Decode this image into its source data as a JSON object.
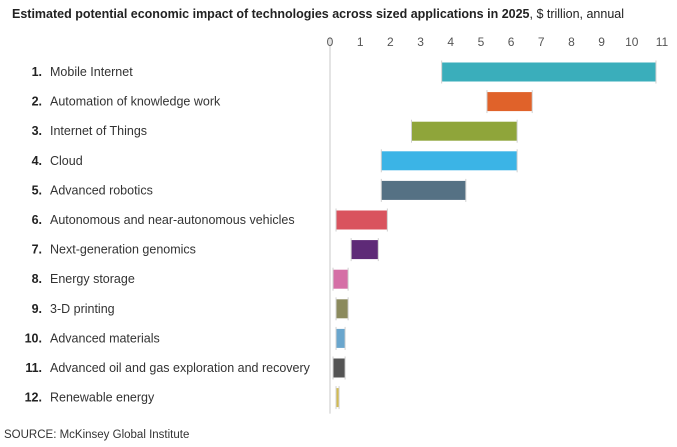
{
  "title": "Estimated potential economic impact of technologies across sized applications in 2025",
  "subtitle": ", $ trillion, annual",
  "source": "SOURCE: McKinsey Global Institute",
  "chart_data": {
    "type": "bar",
    "orientation": "horizontal-floating-range",
    "title": "Estimated potential economic impact of technologies across sized applications in 2025",
    "unit": "$ trillion, annual",
    "xlim": [
      0,
      11
    ],
    "ticks": [
      "0",
      "1",
      "2",
      "3",
      "4",
      "5",
      "6",
      "7",
      "8",
      "9",
      "10",
      "11"
    ],
    "grid": false,
    "items": [
      {
        "rank": "1.",
        "label": "Mobile Internet",
        "low": 3.7,
        "high": 10.8,
        "color": "#3aaebb"
      },
      {
        "rank": "2.",
        "label": "Automation of knowledge work",
        "low": 5.2,
        "high": 6.7,
        "color": "#e0622a"
      },
      {
        "rank": "3.",
        "label": "Internet of Things",
        "low": 2.7,
        "high": 6.2,
        "color": "#8fa53a"
      },
      {
        "rank": "4.",
        "label": "Cloud",
        "low": 1.7,
        "high": 6.2,
        "color": "#3bb4e6"
      },
      {
        "rank": "5.",
        "label": "Advanced robotics",
        "low": 1.7,
        "high": 4.5,
        "color": "#557184"
      },
      {
        "rank": "6.",
        "label": "Autonomous and near-autonomous vehicles",
        "low": 0.2,
        "high": 1.9,
        "color": "#d9535e"
      },
      {
        "rank": "7.",
        "label": "Next-generation genomics",
        "low": 0.7,
        "high": 1.6,
        "color": "#5e2a77"
      },
      {
        "rank": "8.",
        "label": "Energy storage",
        "low": 0.1,
        "high": 0.6,
        "color": "#d56fa6"
      },
      {
        "rank": "9.",
        "label": "3-D printing",
        "low": 0.2,
        "high": 0.6,
        "color": "#8b8a5d"
      },
      {
        "rank": "10.",
        "label": "Advanced materials",
        "low": 0.2,
        "high": 0.5,
        "color": "#6aa6cd"
      },
      {
        "rank": "11.",
        "label": "Advanced oil and gas exploration and recovery",
        "low": 0.1,
        "high": 0.5,
        "color": "#545454"
      },
      {
        "rank": "12.",
        "label": "Renewable energy",
        "low": 0.2,
        "high": 0.3,
        "color": "#d2bb50"
      }
    ]
  }
}
